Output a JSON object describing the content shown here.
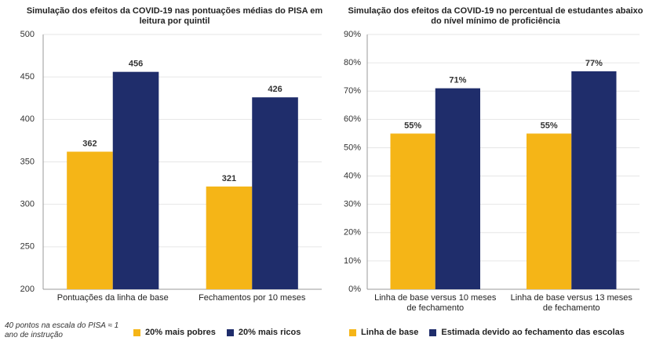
{
  "chart_data": [
    {
      "type": "bar",
      "title": "Simulação dos efeitos da COVID-19 nas pontuações médias do PISA em leitura por quintil",
      "categories": [
        "Pontuações da linha de base",
        "Fechamentos por 10 meses"
      ],
      "series": [
        {
          "name": "20% mais pobres",
          "color": "#f5b517",
          "values": [
            362,
            321
          ]
        },
        {
          "name": "20% mais ricos",
          "color": "#1f2d6b",
          "values": [
            456,
            426
          ]
        }
      ],
      "ylim": [
        200,
        500
      ],
      "yticks": [
        200,
        250,
        300,
        350,
        400,
        450,
        500
      ],
      "grid": true,
      "annotation": "40 pontos na escala do PISA ≈ 1 ano de instrução"
    },
    {
      "type": "bar",
      "title": "Simulação dos efeitos da COVID-19 no percentual de estudantes abaixo do nível mínimo de proficiência",
      "categories": [
        "Linha de base versus 10 meses de fechamento",
        "Linha de base versus 13 meses de fechamento"
      ],
      "series": [
        {
          "name": "Linha de base",
          "color": "#f5b517",
          "values": [
            55,
            55
          ],
          "value_labels": [
            "55%",
            "55%"
          ]
        },
        {
          "name": "Estimada devido ao fechamento das escolas",
          "color": "#1f2d6b",
          "values": [
            71,
            77
          ],
          "value_labels": [
            "71%",
            "77%"
          ]
        }
      ],
      "ylim": [
        0,
        90
      ],
      "yticks": [
        {
          "value": 0,
          "label": "0%"
        },
        {
          "value": 10,
          "label": "10%"
        },
        {
          "value": 20,
          "label": "20%"
        },
        {
          "value": 30,
          "label": "30%"
        },
        {
          "value": 40,
          "label": "40%"
        },
        {
          "value": 50,
          "label": "50%"
        },
        {
          "value": 60,
          "label": "60%"
        },
        {
          "value": 70,
          "label": "70%"
        },
        {
          "value": 80,
          "label": "80%"
        },
        {
          "value": 90,
          "label": "90%"
        }
      ],
      "grid": true
    }
  ]
}
